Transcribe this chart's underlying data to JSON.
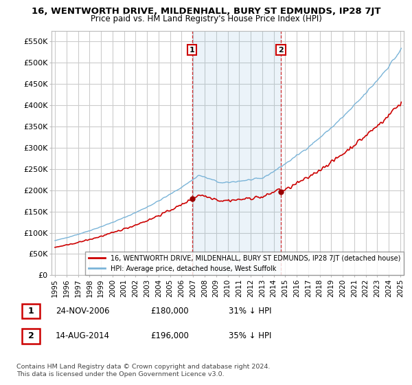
{
  "title": "16, WENTWORTH DRIVE, MILDENHALL, BURY ST EDMUNDS, IP28 7JT",
  "subtitle": "Price paid vs. HM Land Registry's House Price Index (HPI)",
  "ylabel_ticks": [
    "£0",
    "£50K",
    "£100K",
    "£150K",
    "£200K",
    "£250K",
    "£300K",
    "£350K",
    "£400K",
    "£450K",
    "£500K",
    "£550K"
  ],
  "ytick_values": [
    0,
    50000,
    100000,
    150000,
    200000,
    250000,
    300000,
    350000,
    400000,
    450000,
    500000,
    550000
  ],
  "ylim": [
    0,
    575000
  ],
  "xlim_start": 1994.7,
  "xlim_end": 2025.3,
  "hpi_color": "#7ab4d8",
  "hpi_fill_color": "#ddeeff",
  "price_color": "#cc0000",
  "marker_color": "#990000",
  "vline_color": "#cc0000",
  "bg_color": "#ffffff",
  "grid_color": "#cccccc",
  "transaction1_date": "24-NOV-2006",
  "transaction1_price": 180000,
  "transaction1_pct": "31%",
  "transaction1_year": 2006.9,
  "transaction2_date": "14-AUG-2014",
  "transaction2_price": 196000,
  "transaction2_pct": "35%",
  "transaction2_year": 2014.62,
  "footer_text": "Contains HM Land Registry data © Crown copyright and database right 2024.\nThis data is licensed under the Open Government Licence v3.0.",
  "legend_line1": "16, WENTWORTH DRIVE, MILDENHALL, BURY ST EDMUNDS, IP28 7JT (detached house)",
  "legend_line2": "HPI: Average price, detached house, West Suffolk"
}
